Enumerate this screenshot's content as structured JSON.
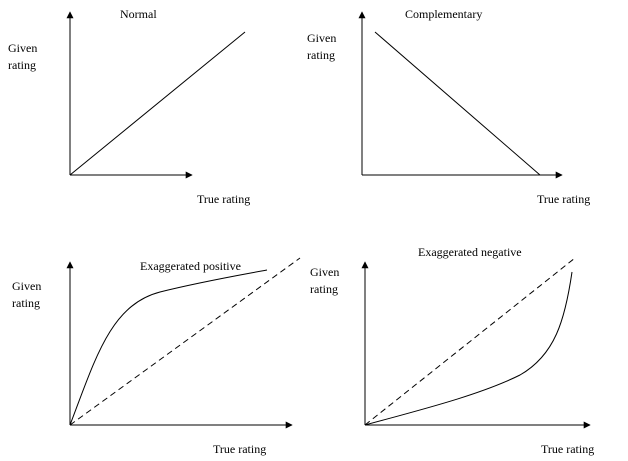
{
  "panels": [
    {
      "title": "Normal",
      "y_label": [
        "Given",
        "rating"
      ],
      "x_label": "True rating"
    },
    {
      "title": "Complementary",
      "y_label": [
        "Given",
        "rating"
      ],
      "x_label": "True rating"
    },
    {
      "title": "Exaggerated positive",
      "y_label": [
        "Given",
        "rating"
      ],
      "x_label": "True rating"
    },
    {
      "title": "Exaggerated negative",
      "y_label": [
        "Given",
        "rating"
      ],
      "x_label": "True rating"
    }
  ]
}
